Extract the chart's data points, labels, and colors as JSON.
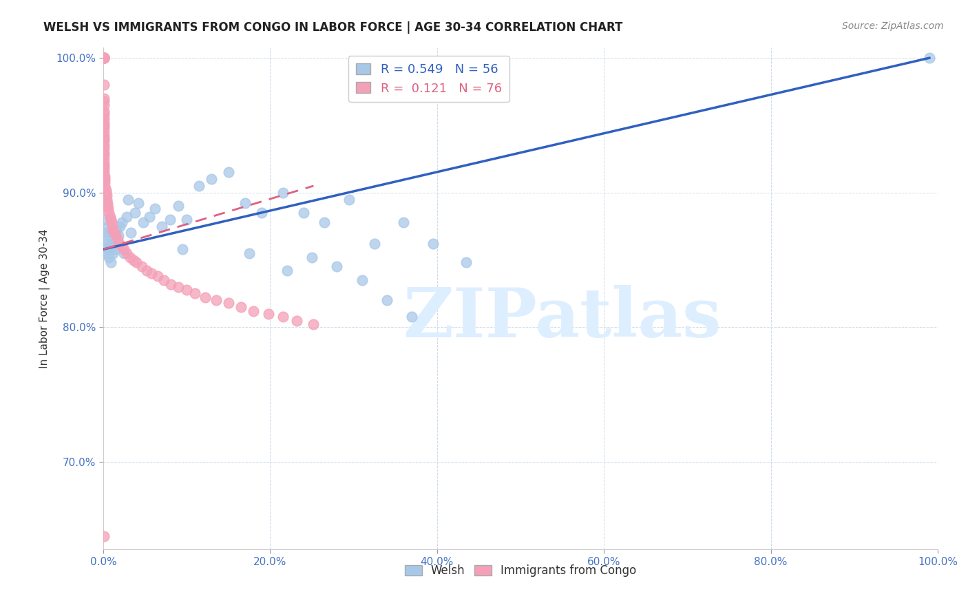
{
  "title": "WELSH VS IMMIGRANTS FROM CONGO IN LABOR FORCE | AGE 30-34 CORRELATION CHART",
  "source": "Source: ZipAtlas.com",
  "ylabel": "In Labor Force | Age 30-34",
  "xlim": [
    0.0,
    1.0
  ],
  "ylim": [
    0.635,
    1.008
  ],
  "yticks": [
    0.7,
    0.8,
    0.9,
    1.0
  ],
  "ytick_labels": [
    "70.0%",
    "80.0%",
    "90.0%",
    "100.0%"
  ],
  "xticks": [
    0.0,
    0.2,
    0.4,
    0.6,
    0.8,
    1.0
  ],
  "xtick_labels": [
    "0.0%",
    "20.0%",
    "40.0%",
    "60.0%",
    "80.0%",
    "100.0%"
  ],
  "welsh_R": 0.549,
  "welsh_N": 56,
  "congo_R": 0.121,
  "congo_N": 76,
  "welsh_color": "#a8c8e8",
  "congo_color": "#f4a0b8",
  "welsh_line_color": "#3060c0",
  "congo_line_color": "#e06080",
  "watermark_text": "ZIPatlas",
  "watermark_color": "#ddeeff",
  "background_color": "#ffffff",
  "axis_color": "#4472c4",
  "title_color": "#222222",
  "grid_color": "#c8d8e8",
  "welsh_x": [
    0.001,
    0.002,
    0.002,
    0.003,
    0.003,
    0.004,
    0.005,
    0.005,
    0.006,
    0.007,
    0.008,
    0.009,
    0.01,
    0.011,
    0.012,
    0.013,
    0.015,
    0.016,
    0.018,
    0.02,
    0.022,
    0.025,
    0.028,
    0.03,
    0.033,
    0.038,
    0.042,
    0.048,
    0.055,
    0.062,
    0.07,
    0.08,
    0.09,
    0.1,
    0.115,
    0.13,
    0.15,
    0.17,
    0.19,
    0.215,
    0.24,
    0.265,
    0.295,
    0.325,
    0.36,
    0.395,
    0.435,
    0.095,
    0.175,
    0.22,
    0.25,
    0.28,
    0.31,
    0.34,
    0.37,
    0.99
  ],
  "welsh_y": [
    0.86,
    0.895,
    0.855,
    0.87,
    0.88,
    0.858,
    0.862,
    0.868,
    0.875,
    0.852,
    0.858,
    0.848,
    0.862,
    0.87,
    0.855,
    0.865,
    0.858,
    0.872,
    0.868,
    0.875,
    0.878,
    0.855,
    0.882,
    0.895,
    0.87,
    0.885,
    0.892,
    0.878,
    0.882,
    0.888,
    0.875,
    0.88,
    0.89,
    0.88,
    0.905,
    0.91,
    0.915,
    0.892,
    0.885,
    0.9,
    0.885,
    0.878,
    0.895,
    0.862,
    0.878,
    0.862,
    0.848,
    0.858,
    0.855,
    0.842,
    0.852,
    0.845,
    0.835,
    0.82,
    0.808,
    1.0
  ],
  "congo_x": [
    0.001,
    0.001,
    0.001,
    0.001,
    0.001,
    0.001,
    0.001,
    0.001,
    0.001,
    0.001,
    0.001,
    0.001,
    0.001,
    0.001,
    0.001,
    0.001,
    0.001,
    0.001,
    0.001,
    0.001,
    0.001,
    0.001,
    0.001,
    0.001,
    0.001,
    0.001,
    0.001,
    0.001,
    0.001,
    0.001,
    0.002,
    0.002,
    0.002,
    0.002,
    0.003,
    0.003,
    0.004,
    0.004,
    0.005,
    0.005,
    0.006,
    0.007,
    0.008,
    0.009,
    0.01,
    0.011,
    0.012,
    0.013,
    0.015,
    0.017,
    0.019,
    0.022,
    0.025,
    0.028,
    0.032,
    0.036,
    0.04,
    0.046,
    0.052,
    0.058,
    0.065,
    0.073,
    0.081,
    0.09,
    0.1,
    0.11,
    0.122,
    0.135,
    0.15,
    0.165,
    0.18,
    0.198,
    0.215,
    0.232,
    0.252,
    0.001
  ],
  "congo_y": [
    1.0,
    1.0,
    1.0,
    1.0,
    1.0,
    1.0,
    1.0,
    0.98,
    0.97,
    0.968,
    0.965,
    0.96,
    0.958,
    0.955,
    0.952,
    0.95,
    0.948,
    0.945,
    0.942,
    0.94,
    0.938,
    0.935,
    0.933,
    0.93,
    0.928,
    0.925,
    0.922,
    0.92,
    0.918,
    0.915,
    0.912,
    0.91,
    0.908,
    0.905,
    0.902,
    0.9,
    0.898,
    0.895,
    0.892,
    0.89,
    0.888,
    0.885,
    0.882,
    0.88,
    0.878,
    0.875,
    0.872,
    0.87,
    0.868,
    0.865,
    0.862,
    0.86,
    0.858,
    0.855,
    0.852,
    0.85,
    0.848,
    0.845,
    0.842,
    0.84,
    0.838,
    0.835,
    0.832,
    0.83,
    0.828,
    0.825,
    0.822,
    0.82,
    0.818,
    0.815,
    0.812,
    0.81,
    0.808,
    0.805,
    0.802,
    0.645
  ],
  "welsh_trendline_x": [
    0.001,
    0.99
  ],
  "welsh_trendline_y": [
    0.858,
    1.0
  ],
  "congo_trendline_x": [
    0.001,
    0.252
  ],
  "congo_trendline_y": [
    0.858,
    0.905
  ]
}
